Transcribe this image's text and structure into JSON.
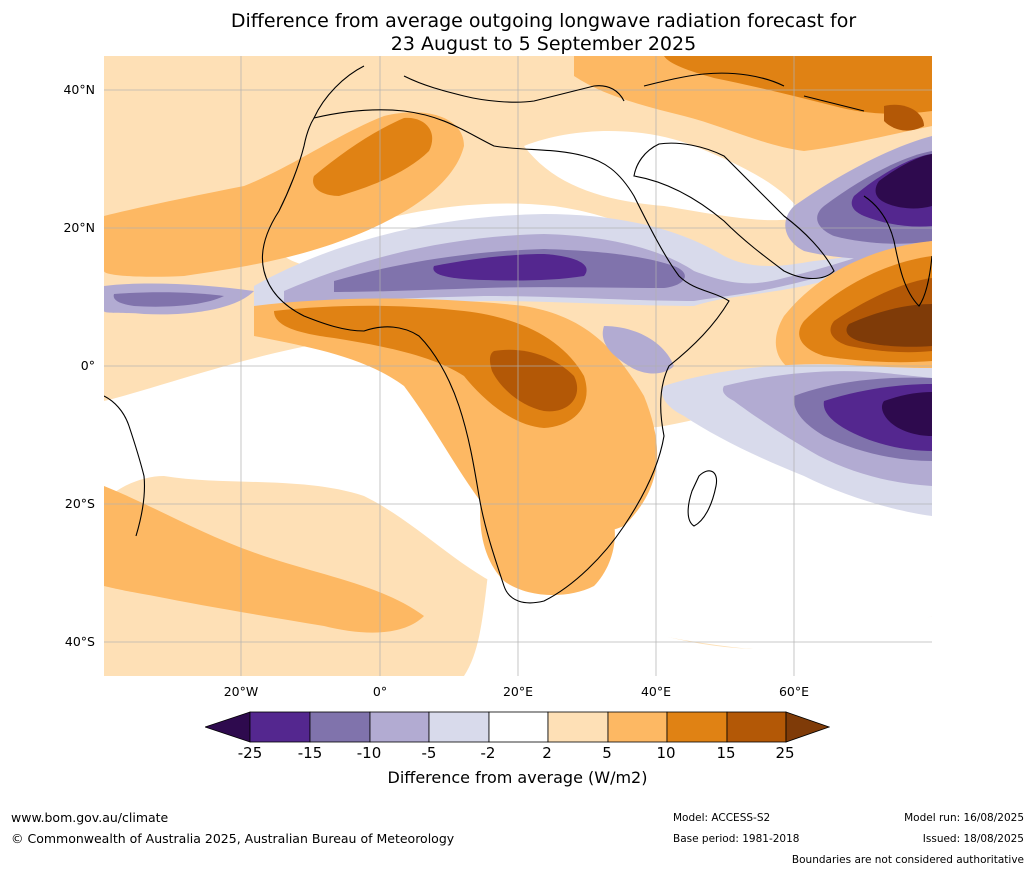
{
  "title": {
    "line1": "Difference from average outgoing longwave radiation forecast for",
    "line2": "23 August to 5 September 2025"
  },
  "axes": {
    "lat_labels": [
      "40°N",
      "20°N",
      "0°",
      "20°S",
      "40°S"
    ],
    "lon_labels": [
      "20°W",
      "0°",
      "20°E",
      "40°E",
      "60°E"
    ],
    "lat_range": [
      -45,
      45
    ],
    "lon_range": [
      -40,
      80
    ],
    "grid": true
  },
  "colorbar": {
    "label": "Difference from average (W/m2)",
    "ticks": [
      "-25",
      "-15",
      "-10",
      "-5",
      "-2",
      "2",
      "5",
      "10",
      "15",
      "25"
    ],
    "colors": [
      "#2e0a4e",
      "#54278f",
      "#8073ac",
      "#b2abd2",
      "#d8daeb",
      "#ffffff",
      "#fee0b6",
      "#fdb863",
      "#e08214",
      "#b35806",
      "#7f3b08"
    ],
    "extend": "both"
  },
  "footer": {
    "website": "www.bom.gov.au/climate",
    "copyright": "© Commonwealth of Australia 2025, Australian Bureau of Meteorology",
    "model": "Model: ACCESS-S2",
    "base_period": "Base period: 1981-2018",
    "model_run": "Model run: 16/08/2025",
    "issued": "Issued: 18/08/2025",
    "disclaimer": "Boundaries are not considered authoritative"
  }
}
